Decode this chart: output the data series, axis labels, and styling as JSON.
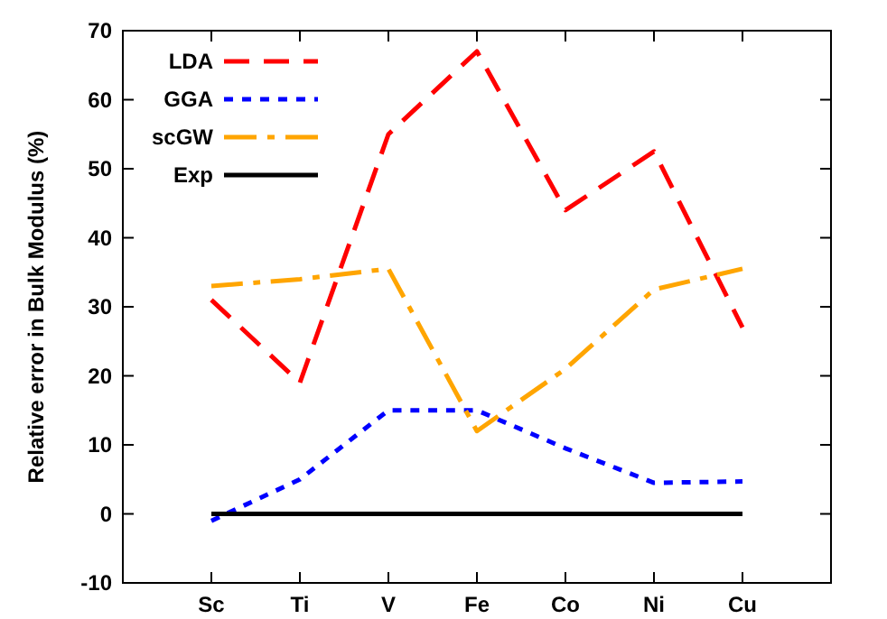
{
  "chart_data": {
    "type": "line",
    "ylabel": "Relative error in Bulk Modulus (%)",
    "categories": [
      "Sc",
      "Ti",
      "V",
      "Fe",
      "Co",
      "Ni",
      "Cu"
    ],
    "series": [
      {
        "name": "LDA",
        "color": "#ff0000",
        "line_style": "dashed",
        "values": [
          31,
          19,
          55,
          67,
          44,
          52.5,
          27
        ]
      },
      {
        "name": "GGA",
        "color": "#0000ff",
        "line_style": "dotted",
        "values": [
          -1,
          5,
          15,
          15,
          9.5,
          4.5,
          4.7
        ]
      },
      {
        "name": "scGW",
        "color": "#ffa500",
        "line_style": "dashdot",
        "values": [
          33,
          34,
          35.5,
          12,
          21,
          32.5,
          35.5
        ]
      },
      {
        "name": "Exp",
        "color": "#000000",
        "line_style": "solid",
        "values": [
          0,
          0,
          0,
          0,
          0,
          0,
          0
        ]
      }
    ],
    "ylim": [
      -10,
      70
    ],
    "yticks": [
      -10,
      0,
      10,
      20,
      30,
      40,
      50,
      60,
      70
    ],
    "grid": false,
    "legend": "top left"
  }
}
